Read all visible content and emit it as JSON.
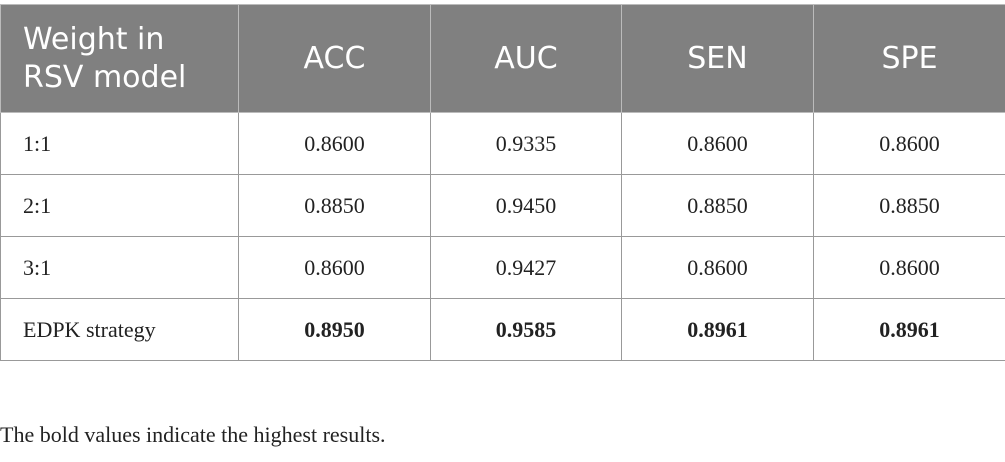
{
  "table": {
    "header": [
      "Weight in RSV model",
      "ACC",
      "AUC",
      "SEN",
      "SPE"
    ],
    "rows": [
      [
        "1:1",
        "0.8600",
        "0.9335",
        "0.8600",
        "0.8600"
      ],
      [
        "2:1",
        "0.8850",
        "0.9450",
        "0.8850",
        "0.8850"
      ],
      [
        "3:1",
        "0.8600",
        "0.9427",
        "0.8600",
        "0.8600"
      ],
      [
        "EDPK strategy",
        "0.8950",
        "0.9585",
        "0.8961",
        "0.8961"
      ]
    ]
  },
  "footnote": "The bold values indicate the highest results."
}
